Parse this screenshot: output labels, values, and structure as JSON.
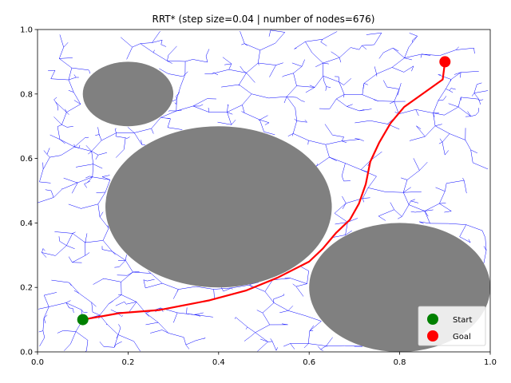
{
  "chart_data": {
    "type": "scatter",
    "title": "RRT* (step size=0.04 | number of nodes=676)",
    "xlim": [
      0,
      1
    ],
    "ylim": [
      0,
      1
    ],
    "x_ticks": [
      "0.0",
      "0.2",
      "0.4",
      "0.6",
      "0.8",
      "1.0"
    ],
    "y_ticks": [
      "0.0",
      "0.2",
      "0.4",
      "0.6",
      "0.8",
      "1.0"
    ],
    "grid": false,
    "legend_position": "bottom-right",
    "obstacles": [
      {
        "cx": 0.2,
        "cy": 0.8,
        "rx": 0.1,
        "ry": 0.1
      },
      {
        "cx": 0.4,
        "cy": 0.45,
        "rx": 0.25,
        "ry": 0.25
      },
      {
        "cx": 0.8,
        "cy": 0.2,
        "rx": 0.2,
        "ry": 0.2
      }
    ],
    "path": {
      "color": "#ff0000",
      "points": [
        [
          0.1,
          0.1
        ],
        [
          0.18,
          0.12
        ],
        [
          0.27,
          0.13
        ],
        [
          0.38,
          0.16
        ],
        [
          0.46,
          0.19
        ],
        [
          0.53,
          0.23
        ],
        [
          0.6,
          0.28
        ],
        [
          0.63,
          0.32
        ],
        [
          0.66,
          0.37
        ],
        [
          0.69,
          0.41
        ],
        [
          0.71,
          0.46
        ],
        [
          0.725,
          0.52
        ],
        [
          0.735,
          0.59
        ],
        [
          0.755,
          0.65
        ],
        [
          0.78,
          0.71
        ],
        [
          0.81,
          0.76
        ],
        [
          0.84,
          0.79
        ],
        [
          0.87,
          0.82
        ],
        [
          0.895,
          0.845
        ],
        [
          0.9,
          0.9
        ]
      ]
    },
    "tree_color": "#0000ff",
    "series": [
      {
        "name": "Start",
        "color": "#008000",
        "points": [
          [
            0.1,
            0.1
          ]
        ]
      },
      {
        "name": "Goal",
        "color": "#ff0000",
        "points": [
          [
            0.9,
            0.9
          ]
        ]
      }
    ]
  },
  "obstacle_color": "#808080"
}
